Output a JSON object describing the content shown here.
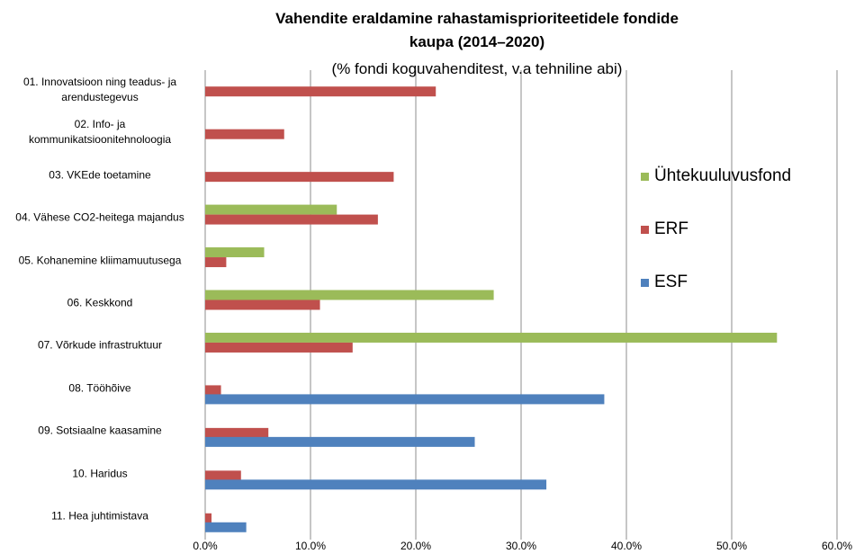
{
  "chart_data": {
    "type": "hbar",
    "title": "Vahendite eraldamine rahastamisprioriteetidele fondide kaupa (2014–2020)",
    "subtitle": "(% fondi koguvahenditest, v.a tehniline abi)",
    "categories": [
      "01. Innovatsioon ning teadus- ja arendustegevus",
      "02. Info- ja kommunikatsioonitehnoloogia",
      "03. VKEde toetamine",
      "04. Vähese CO2-heitega majandus",
      "05. Kohanemine kliimamuutusega",
      "06. Keskkond",
      "07. Võrkude infrastruktuur",
      "08. Tööhõive",
      "09. Sotsiaalne kaasamine",
      "10. Haridus",
      "11. Hea juhtimistava"
    ],
    "series": [
      {
        "name": "Ühtekuuluvusfond",
        "color": "#9bbb59",
        "values": [
          null,
          null,
          null,
          12.5,
          5.6,
          27.4,
          54.3,
          null,
          null,
          null,
          null
        ]
      },
      {
        "name": "ERF",
        "color": "#c0504d",
        "values": [
          21.9,
          7.5,
          17.9,
          16.4,
          2.0,
          10.9,
          14.0,
          1.5,
          6.0,
          3.4,
          0.6
        ]
      },
      {
        "name": "ESF",
        "color": "#4f81bd",
        "values": [
          null,
          null,
          null,
          null,
          null,
          null,
          null,
          37.9,
          25.6,
          32.4,
          3.9
        ]
      }
    ],
    "xlim": [
      0,
      60
    ],
    "xticks": [
      {
        "value": 0,
        "label": "0.0%"
      },
      {
        "value": 10,
        "label": "10.0%"
      },
      {
        "value": 20,
        "label": "20.0%"
      },
      {
        "value": 30,
        "label": "30.0%"
      },
      {
        "value": 40,
        "label": "40.0%"
      },
      {
        "value": 50,
        "label": "50.0%"
      },
      {
        "value": 60,
        "label": "60.0%"
      }
    ],
    "grid": true
  }
}
